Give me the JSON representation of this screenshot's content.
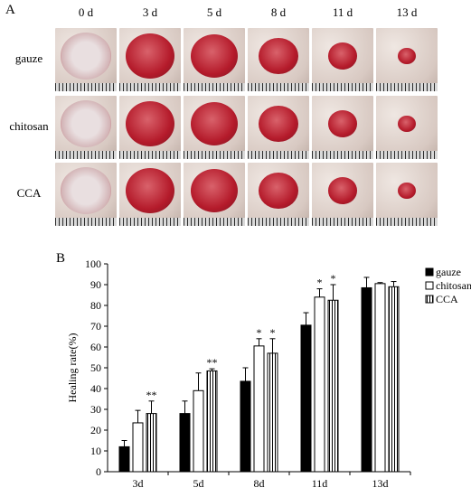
{
  "panelA": {
    "label": "A",
    "days": [
      "0 d",
      "3 d",
      "5 d",
      "8 d",
      "11 d",
      "13 d"
    ],
    "groups": [
      "gauze",
      "chitosan",
      "CCA"
    ]
  },
  "panelB": {
    "label": "B"
  },
  "colors": {
    "gauze_fill": "#000000",
    "chitosan_fill": "#ffffff",
    "cca_hatch": "#000000",
    "skin": "#d8c9c2",
    "wound": "#b51b2b"
  },
  "chart_data": {
    "type": "bar",
    "categories": [
      "3d",
      "5d",
      "8d",
      "11d",
      "13d"
    ],
    "ylabel": "Healing rate(%)",
    "xlabel": "",
    "ylim": [
      0,
      100
    ],
    "yticks": [
      0,
      10,
      20,
      30,
      40,
      50,
      60,
      70,
      80,
      90,
      100
    ],
    "legend_position": "top-right",
    "series": [
      {
        "name": "gauze",
        "values": [
          12,
          28,
          43.5,
          70.5,
          88.5
        ],
        "errors": [
          3,
          6,
          6.5,
          6,
          5
        ],
        "marks": [
          "",
          "",
          "",
          "",
          ""
        ]
      },
      {
        "name": "chitosan",
        "values": [
          23.5,
          39,
          60.5,
          84,
          90.5
        ],
        "errors": [
          6,
          8.5,
          3.5,
          4,
          0.5
        ],
        "marks": [
          "",
          "",
          "*",
          "*",
          ""
        ]
      },
      {
        "name": "CCA",
        "values": [
          28,
          48.5,
          57,
          82.5,
          89
        ],
        "errors": [
          6,
          1,
          7,
          7.5,
          2.5
        ],
        "marks": [
          "**",
          "**",
          "*",
          "*",
          ""
        ]
      }
    ]
  }
}
